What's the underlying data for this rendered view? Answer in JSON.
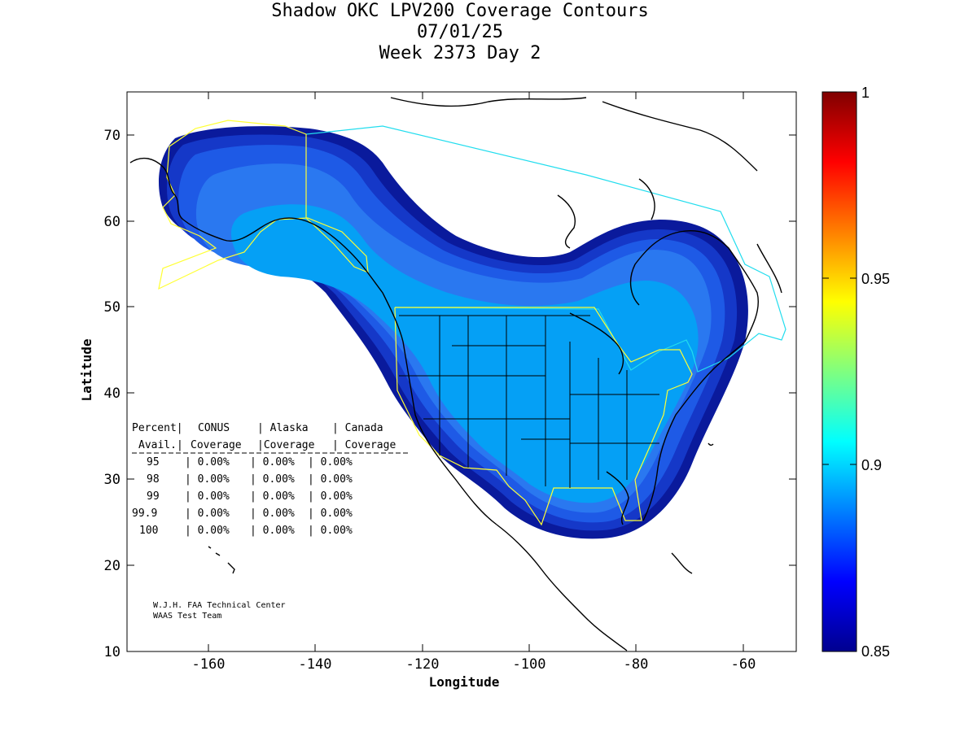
{
  "title": {
    "line1": "Shadow OKC LPV200 Coverage Contours",
    "line2": "07/01/25",
    "line3": "Week 2373 Day 2"
  },
  "axes": {
    "xlabel": "Longitude",
    "ylabel": "Latitude",
    "xlim": [
      -175,
      -50
    ],
    "ylim": [
      10,
      75
    ],
    "xticks": [
      "-160",
      "-140",
      "-120",
      "-100",
      "-80",
      "-60"
    ],
    "yticks": [
      "70",
      "60",
      "50",
      "40",
      "30",
      "20",
      "10"
    ]
  },
  "colorbar": {
    "range": [
      0.85,
      1.0
    ],
    "labels": [
      "1",
      "0.95",
      "0.9",
      "0.85"
    ]
  },
  "table": {
    "header1": [
      "Percent|",
      "CONUS",
      "| Alaska",
      "| Canada"
    ],
    "header2": [
      "Avail.|",
      "Coverage",
      "|Coverage",
      "| Coverage"
    ],
    "rows": [
      [
        "95",
        "| 0.00%",
        "| 0.00%",
        "| 0.00%"
      ],
      [
        "98",
        "| 0.00%",
        "| 0.00%",
        "| 0.00%"
      ],
      [
        "99",
        "| 0.00%",
        "| 0.00%",
        "| 0.00%"
      ],
      [
        "99.9",
        "| 0.00%",
        "| 0.00%",
        "| 0.00%"
      ],
      [
        "100",
        "| 0.00%",
        "| 0.00%",
        "| 0.00%"
      ]
    ]
  },
  "credits": {
    "line1": "W.J.H. FAA Technical Center",
    "line2": "WAAS Test Team"
  },
  "colors": {
    "outer": "#0a1a9c",
    "ring2": "#1538c8",
    "ring3": "#1e5ae6",
    "ring4": "#2a78f0",
    "core": "#05a0f5",
    "conus_outline": "#ffff33",
    "canada_outline": "#22ddee"
  }
}
